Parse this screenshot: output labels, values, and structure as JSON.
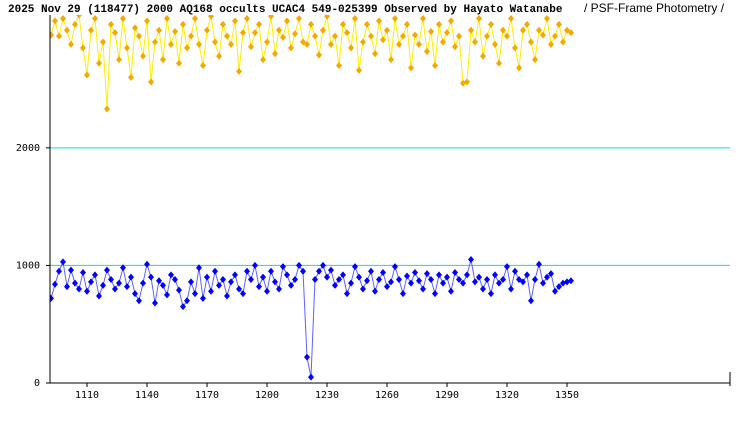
{
  "chart_data": {
    "type": "line",
    "title": "2025 Nov 29 (118477) 2000 AQ168 occults UCAC4 549-025399 Observed by Hayato Watanabe",
    "subtitle": "/ PSF-Frame Photometry /",
    "xlim": [
      1091.5,
      1431.5
    ],
    "xticks": [
      1110,
      1140,
      1170,
      1200,
      1230,
      1260,
      1290,
      1320,
      1350
    ],
    "ylim": [
      0,
      3130
    ],
    "yticks": [
      0,
      1000,
      2000
    ],
    "grid": true,
    "grid_color": "#00e0e0",
    "x": [
      1092,
      1094,
      1096,
      1098,
      1100,
      1102,
      1104,
      1106,
      1108,
      1110,
      1112,
      1114,
      1116,
      1118,
      1120,
      1122,
      1124,
      1126,
      1128,
      1130,
      1132,
      1134,
      1136,
      1138,
      1140,
      1142,
      1144,
      1146,
      1148,
      1150,
      1152,
      1154,
      1156,
      1158,
      1160,
      1162,
      1164,
      1166,
      1168,
      1170,
      1172,
      1174,
      1176,
      1178,
      1180,
      1182,
      1184,
      1186,
      1188,
      1190,
      1192,
      1194,
      1196,
      1198,
      1200,
      1202,
      1204,
      1206,
      1208,
      1210,
      1212,
      1214,
      1216,
      1218,
      1220,
      1222,
      1224,
      1226,
      1228,
      1230,
      1232,
      1234,
      1236,
      1238,
      1240,
      1242,
      1244,
      1246,
      1248,
      1250,
      1252,
      1254,
      1256,
      1258,
      1260,
      1262,
      1264,
      1266,
      1268,
      1270,
      1272,
      1274,
      1276,
      1278,
      1280,
      1282,
      1284,
      1286,
      1288,
      1290,
      1292,
      1294,
      1296,
      1298,
      1300,
      1302,
      1304,
      1306,
      1308,
      1310,
      1312,
      1314,
      1316,
      1318,
      1320,
      1322,
      1324,
      1326,
      1328,
      1330,
      1332,
      1334,
      1336,
      1338,
      1340,
      1342,
      1344,
      1346,
      1348,
      1350,
      1352
    ],
    "series": [
      {
        "color": "#f5a800",
        "line_color": "#ffee00",
        "values": [
          2960,
          3080,
          2950,
          3100,
          3000,
          2880,
          3050,
          3130,
          2850,
          2620,
          3000,
          3100,
          2720,
          2900,
          2330,
          3050,
          2980,
          2750,
          3100,
          2850,
          2600,
          3020,
          2950,
          2780,
          3080,
          2560,
          2900,
          3000,
          2750,
          3100,
          2880,
          2990,
          2720,
          3050,
          2850,
          2950,
          3100,
          2880,
          2700,
          3000,
          3120,
          2900,
          2780,
          3050,
          2950,
          2880,
          3080,
          2650,
          2980,
          3100,
          2860,
          2980,
          3050,
          2750,
          2900,
          3120,
          2800,
          3000,
          2940,
          3080,
          2850,
          2970,
          3100,
          2900,
          2880,
          3050,
          2950,
          2790,
          3000,
          3120,
          2880,
          2950,
          2700,
          3050,
          2980,
          2850,
          3100,
          2660,
          2900,
          3050,
          2950,
          2800,
          3080,
          2920,
          3000,
          2750,
          3100,
          2880,
          2950,
          3050,
          2680,
          2960,
          2880,
          3100,
          2820,
          2990,
          2700,
          3050,
          2900,
          2980,
          3080,
          2860,
          2950,
          2550,
          2560,
          3000,
          2900,
          3100,
          2780,
          2950,
          3050,
          2880,
          2720,
          3000,
          2950,
          3100,
          2850,
          2680,
          3000,
          3050,
          2900,
          2750,
          3000,
          2960,
          3100,
          2880,
          2950,
          3050,
          2900,
          3000,
          2980
        ]
      },
      {
        "color": "#0000ff",
        "line_color": "#6060ff",
        "values": [
          720,
          840,
          950,
          1030,
          820,
          960,
          850,
          800,
          940,
          780,
          860,
          920,
          740,
          830,
          960,
          880,
          800,
          850,
          980,
          820,
          900,
          760,
          700,
          850,
          1010,
          900,
          680,
          870,
          830,
          750,
          920,
          880,
          790,
          650,
          700,
          860,
          760,
          980,
          720,
          900,
          780,
          950,
          830,
          880,
          740,
          860,
          920,
          800,
          760,
          950,
          880,
          1000,
          820,
          900,
          780,
          950,
          860,
          800,
          990,
          920,
          830,
          880,
          1000,
          950,
          220,
          50,
          880,
          950,
          1000,
          900,
          960,
          830,
          880,
          920,
          760,
          850,
          990,
          900,
          800,
          870,
          950,
          780,
          880,
          940,
          820,
          860,
          990,
          880,
          760,
          910,
          850,
          940,
          870,
          800,
          930,
          880,
          760,
          920,
          850,
          900,
          780,
          940,
          880,
          850,
          920,
          1050,
          860,
          900,
          800,
          880,
          760,
          920,
          850,
          880,
          990,
          800,
          950,
          880,
          860,
          920,
          700,
          880,
          1010,
          850,
          900,
          930,
          780,
          820,
          850,
          860,
          870
        ]
      }
    ]
  }
}
